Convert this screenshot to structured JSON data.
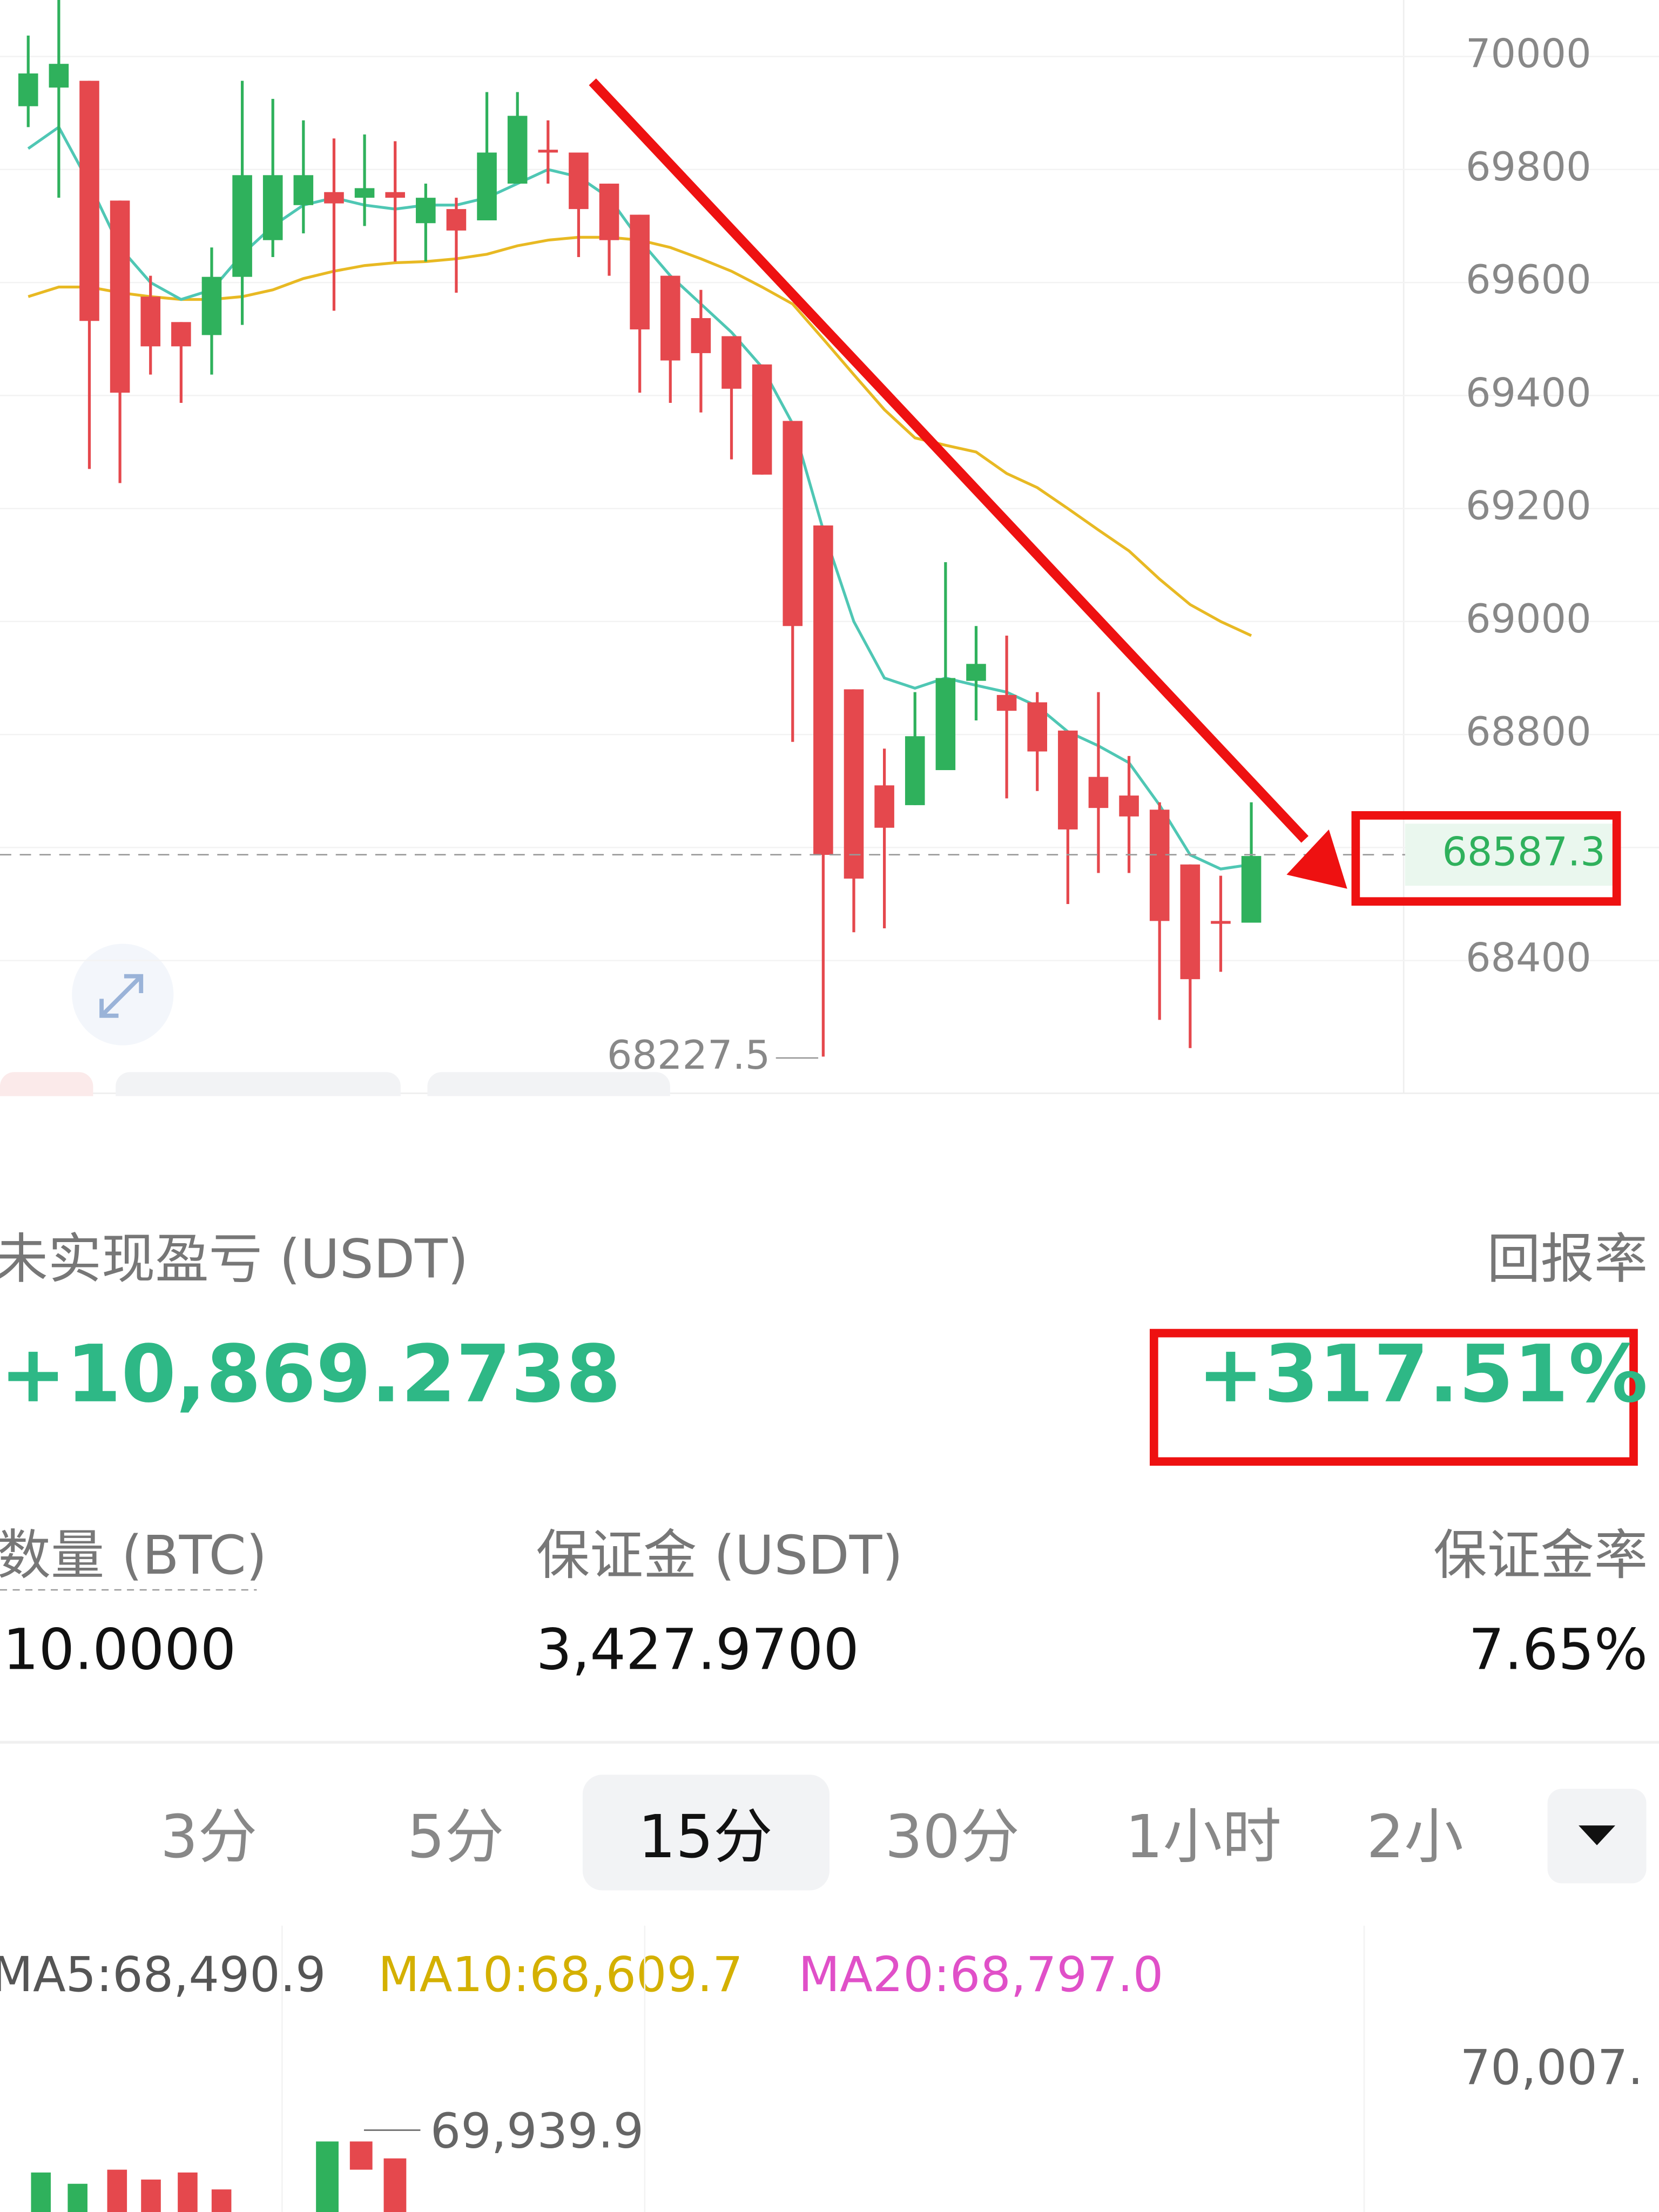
{
  "chart": {
    "type": "candlestick",
    "ylim": [
      68165,
      70100
    ],
    "yticks": [
      68400,
      68600,
      68800,
      69000,
      69200,
      69400,
      69600,
      69800,
      70000
    ],
    "up_color": "#2fb15c",
    "down_color": "#e5484d",
    "open": [
      69912,
      69945,
      69957,
      69745,
      69575,
      69530,
      69507,
      69610,
      69675,
      69737,
      69760,
      69750,
      69760,
      69705,
      69730,
      69710,
      69775,
      69835,
      69830,
      69775,
      69720,
      69612,
      69537,
      69505,
      69455,
      69355,
      69170,
      68880,
      68710,
      68675,
      68737,
      68895,
      68870,
      68857,
      68807,
      68725,
      68692,
      68667,
      68570,
      68470,
      68467
    ],
    "high": [
      70037,
      70100,
      69957,
      69745,
      69612,
      69530,
      69662,
      69957,
      69925,
      69887,
      69855,
      69862,
      69850,
      69775,
      69750,
      69937,
      69937,
      69887,
      69830,
      69775,
      69720,
      69612,
      69587,
      69505,
      69455,
      69355,
      69170,
      68880,
      68775,
      68875,
      69105,
      68992,
      68975,
      68875,
      68807,
      68875,
      68762,
      68680,
      68570,
      68550,
      68680
    ],
    "low": [
      69875,
      69750,
      69270,
      69245,
      69437,
      69387,
      69437,
      69525,
      69645,
      69687,
      69550,
      69700,
      69637,
      69637,
      69582,
      69710,
      69775,
      69775,
      69645,
      69612,
      69405,
      69387,
      69370,
      69287,
      69260,
      68787,
      68230,
      68450,
      68457,
      68675,
      68737,
      68825,
      68687,
      68700,
      68500,
      68555,
      68555,
      68295,
      68245,
      68380,
      68467
    ],
    "close": [
      69970,
      69987,
      69532,
      69405,
      69487,
      69487,
      69610,
      69790,
      69790,
      69790,
      69740,
      69767,
      69750,
      69750,
      69692,
      69830,
      69895,
      69830,
      69730,
      69675,
      69517,
      69462,
      69475,
      69412,
      69260,
      68992,
      68587,
      68545,
      68635,
      68797,
      68900,
      68925,
      68842,
      68770,
      68632,
      68670,
      68655,
      68470,
      68367,
      68465,
      68585
    ],
    "ma_fast": {
      "color": "#4fc7b4",
      "values": [
        69837,
        69875,
        69775,
        69662,
        69600,
        69570,
        69587,
        69650,
        69700,
        69737,
        69750,
        69737,
        69730,
        69737,
        69737,
        69750,
        69775,
        69800,
        69787,
        69750,
        69675,
        69612,
        69562,
        69512,
        69450,
        69350,
        69162,
        69000,
        68900,
        68882,
        68900,
        68887,
        68875,
        68850,
        68805,
        68780,
        68750,
        68675,
        68587,
        68562,
        68570
      ]
    },
    "ma_slow": {
      "color": "#e8b923",
      "values": [
        69575,
        69592,
        69592,
        69582,
        69575,
        69570,
        69570,
        69575,
        69587,
        69607,
        69620,
        69630,
        69635,
        69637,
        69642,
        69650,
        69665,
        69675,
        69680,
        69680,
        69675,
        69662,
        69642,
        69620,
        69592,
        69562,
        69500,
        69437,
        69375,
        69325,
        69312,
        69300,
        69262,
        69237,
        69200,
        69162,
        69125,
        69075,
        69030,
        69000,
        68975
      ]
    },
    "last_price": 68587.3,
    "low_marker": 68227.5
  },
  "position": {
    "pnl_label": "未实现盈亏 (USDT)",
    "pnl": "+10,869.2738",
    "roe_label": "回报率",
    "roe": "+317.51%",
    "qty_label": "数量 (BTC)",
    "qty": "10.0000",
    "margin_label": "保证金 (USDT)",
    "margin": "3,427.9700",
    "margin_ratio_label": "保证金率",
    "margin_ratio": "7.65%"
  },
  "intervals": [
    "3分",
    "5分",
    "15分",
    "30分",
    "1小时",
    "2小"
  ],
  "selected_interval": 2,
  "indicators": [
    {
      "text": "MA5:68,490.9",
      "color": "#555555"
    },
    {
      "text": "MA10:68,609.7",
      "color": "#d4b000"
    },
    {
      "text": "MA20:68,797.0",
      "color": "#e050c8"
    }
  ],
  "lower_chart": {
    "price_labels": [
      "70,007.",
      "69,939.9"
    ]
  }
}
